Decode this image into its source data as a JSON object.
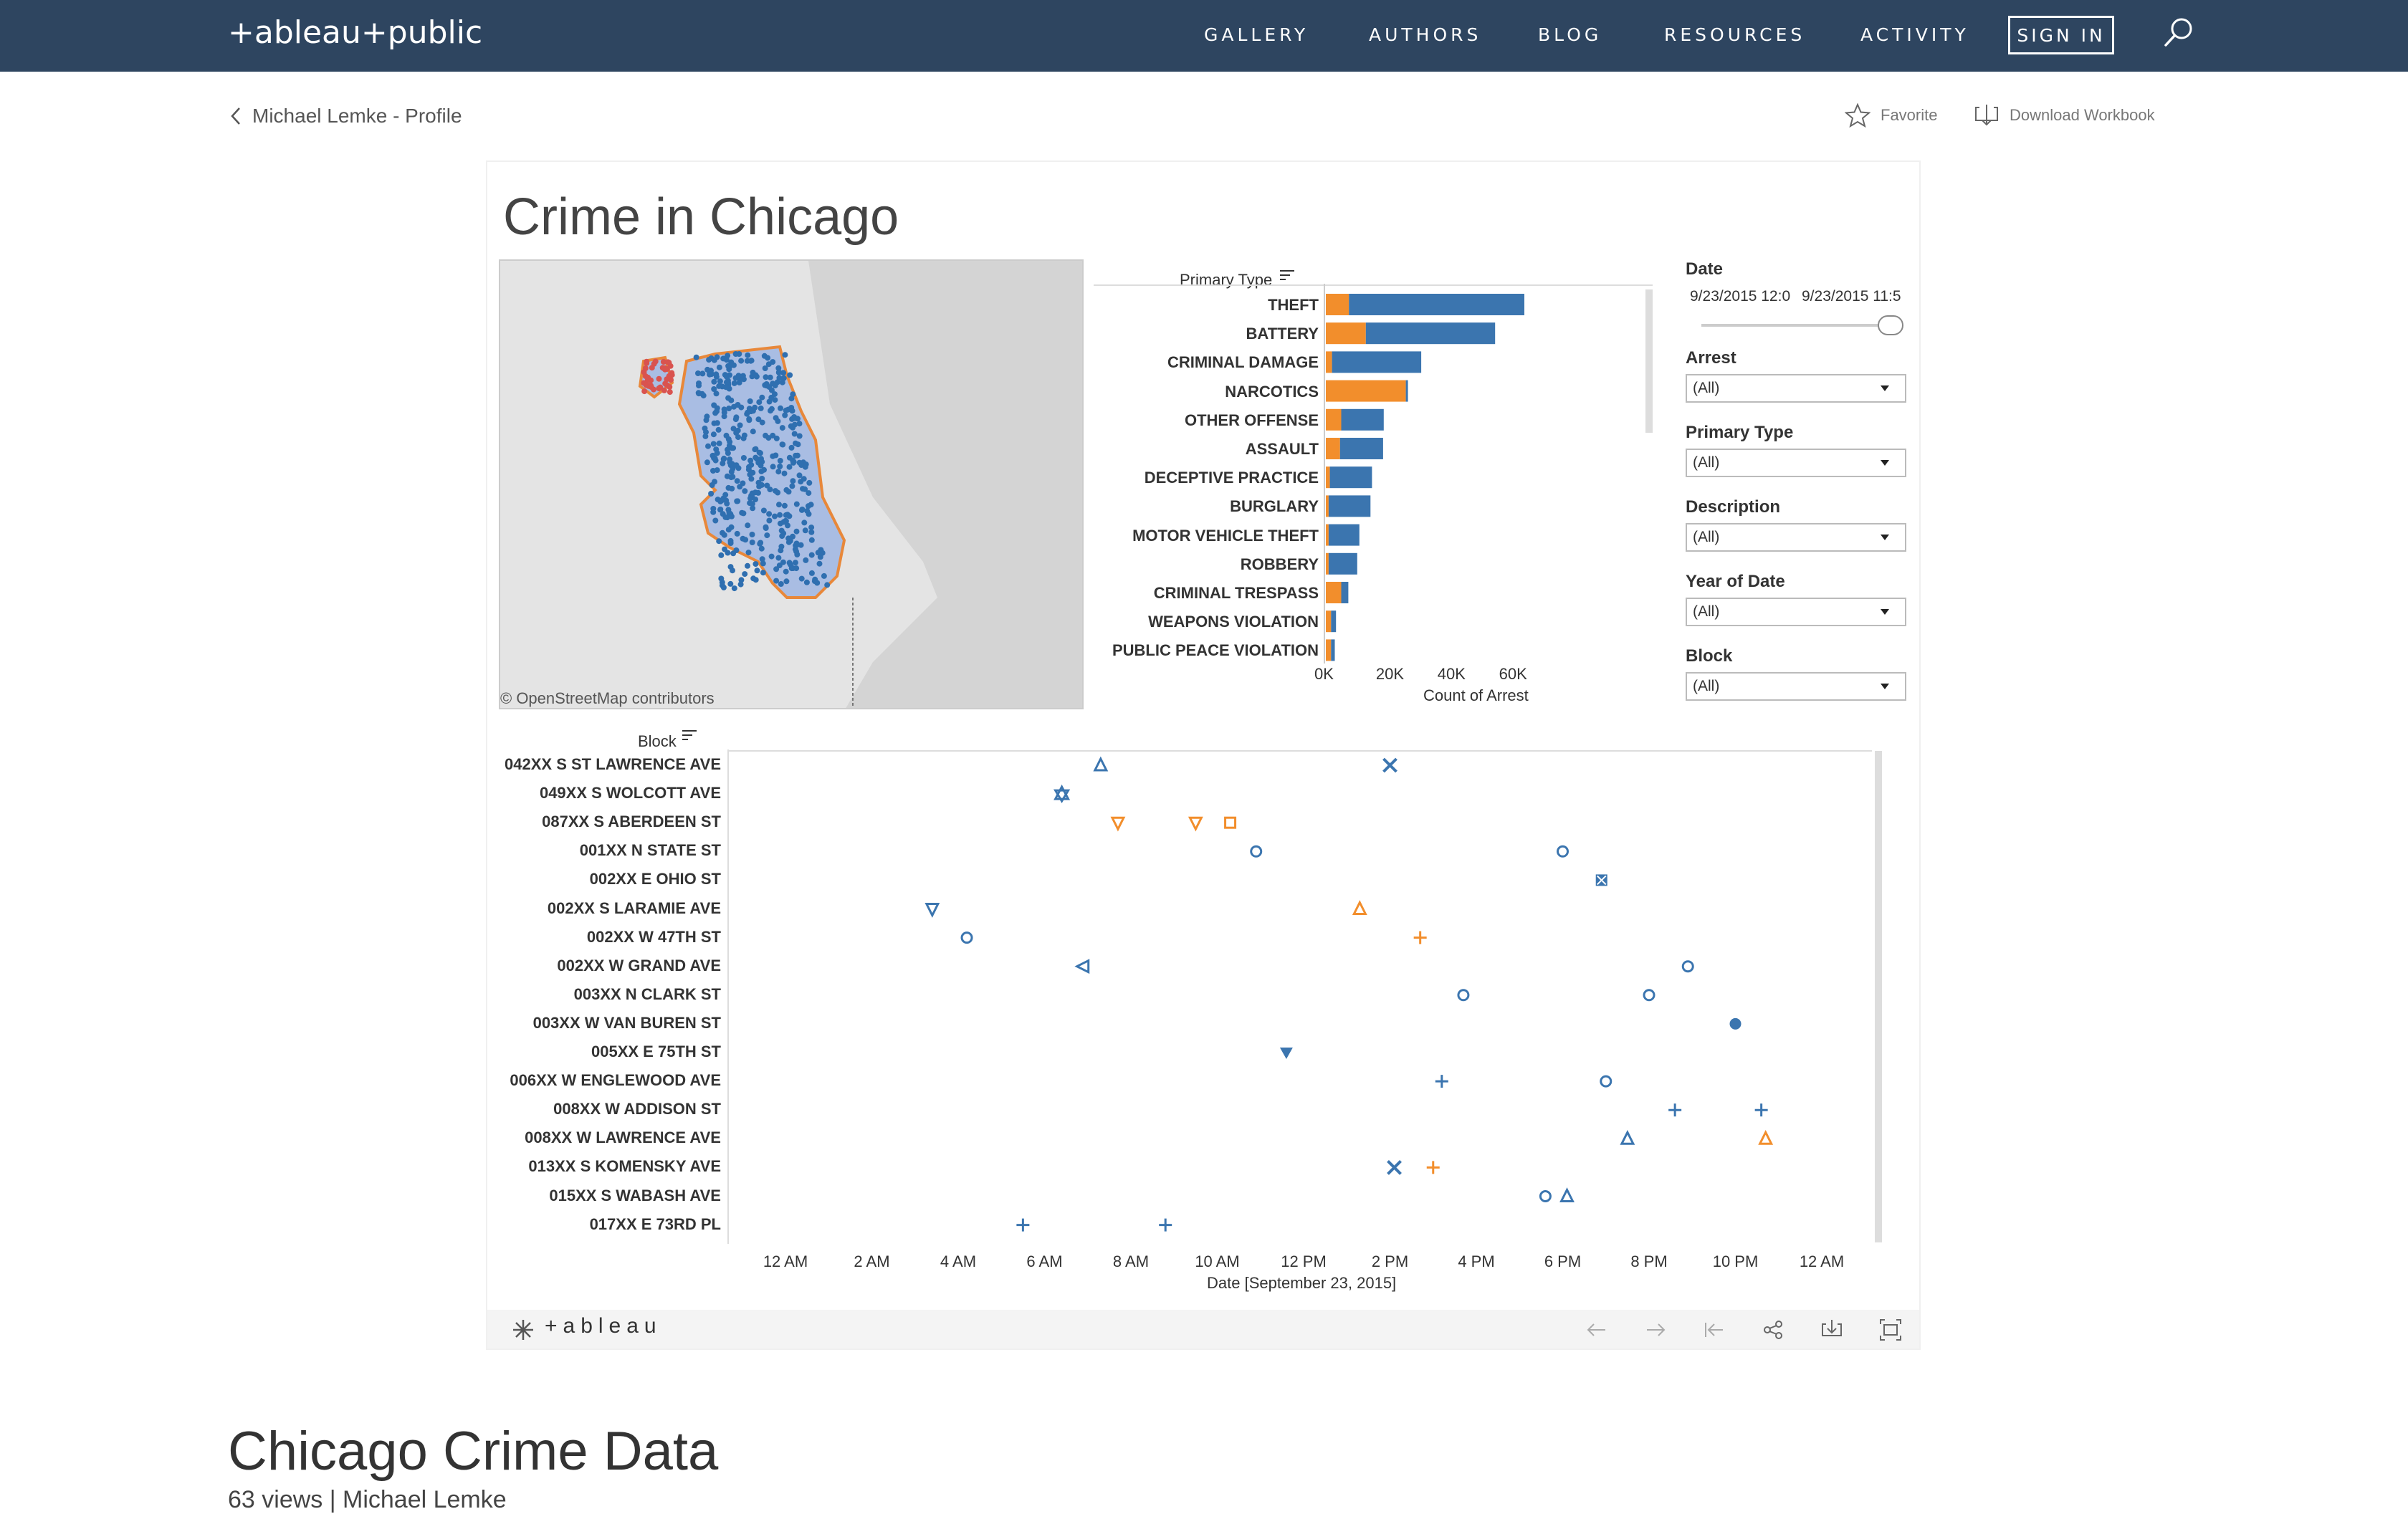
{
  "nav": {
    "logo": "+ableau+public",
    "links": [
      "GALLERY",
      "AUTHORS",
      "BLOG",
      "RESOURCES",
      "ACTIVITY"
    ],
    "signin": "SIGN IN"
  },
  "header": {
    "back_label": "Michael Lemke - Profile",
    "favorite_label": "Favorite",
    "download_label": "Download Workbook"
  },
  "viz": {
    "title": "Crime in Chicago",
    "map_attribution": "© OpenStreetMap contributors",
    "footer_brand": "+ableau"
  },
  "filters": {
    "date_label": "Date",
    "date_start": "9/23/2015 12:0",
    "date_end": "9/23/2015 11:5",
    "items": [
      {
        "label": "Arrest",
        "value": "(All)"
      },
      {
        "label": "Primary Type",
        "value": "(All)"
      },
      {
        "label": "Description",
        "value": "(All)"
      },
      {
        "label": "Year of Date",
        "value": "(All)"
      },
      {
        "label": "Block",
        "value": "(All)"
      }
    ]
  },
  "colors": {
    "arrest_true": "#f28e2c",
    "arrest_false": "#3b75af",
    "nav_bg": "#2e4560"
  },
  "chart_data": [
    {
      "type": "bar",
      "stacked": true,
      "orientation": "horizontal",
      "field_label": "Primary Type",
      "xlabel": "Count of Arrest",
      "xticks": [
        "0K",
        "20K",
        "40K",
        "60K"
      ],
      "xlim": [
        0,
        68000
      ],
      "categories": [
        "THEFT",
        "BATTERY",
        "CRIMINAL DAMAGE",
        "NARCOTICS",
        "OTHER OFFENSE",
        "ASSAULT",
        "DECEPTIVE PRACTICE",
        "BURGLARY",
        "MOTOR VEHICLE THEFT",
        "ROBBERY",
        "CRIMINAL TRESPASS",
        "WEAPONS VIOLATION",
        "PUBLIC PEACE VIOLATION"
      ],
      "series": [
        {
          "color": "#f28e2c",
          "values": [
            7500,
            13000,
            2000,
            26000,
            5000,
            4600,
            1300,
            900,
            900,
            900,
            5000,
            1700,
            1700
          ]
        },
        {
          "color": "#3b75af",
          "values": [
            57000,
            42000,
            29000,
            700,
            13800,
            14000,
            13700,
            13600,
            10000,
            9300,
            2300,
            1600,
            1200
          ]
        }
      ]
    },
    {
      "type": "scatter",
      "field_label": "Block",
      "xlabel": "Date [September 23, 2015]",
      "xticks": [
        "12 AM",
        "2 AM",
        "4 AM",
        "6 AM",
        "8 AM",
        "10 AM",
        "12 PM",
        "2 PM",
        "4 PM",
        "6 PM",
        "8 PM",
        "10 PM",
        "12 AM"
      ],
      "xlim": [
        0,
        24
      ],
      "categories": [
        "042XX S ST LAWRENCE AVE",
        "049XX S WOLCOTT AVE",
        "087XX S ABERDEEN ST",
        "001XX N STATE ST",
        "002XX E OHIO ST",
        "002XX S LARAMIE AVE",
        "002XX W 47TH ST",
        "002XX W GRAND AVE",
        "003XX N CLARK ST",
        "003XX W VAN BUREN ST",
        "005XX E 75TH ST",
        "006XX W ENGLEWOOD AVE",
        "008XX W ADDISON ST",
        "008XX W LAWRENCE AVE",
        "013XX S KOMENSKY AVE",
        "015XX S WABASH AVE",
        "017XX E 73RD PL"
      ],
      "points": [
        {
          "row": 0,
          "x": 7.3,
          "shape": "triangle-up",
          "color": "#3b75af"
        },
        {
          "row": 0,
          "x": 14.0,
          "shape": "x",
          "color": "#3b75af"
        },
        {
          "row": 1,
          "x": 6.4,
          "shape": "star",
          "color": "#3b75af"
        },
        {
          "row": 2,
          "x": 7.7,
          "shape": "triangle-down",
          "color": "#f28e2c"
        },
        {
          "row": 2,
          "x": 9.5,
          "shape": "triangle-down",
          "color": "#f28e2c"
        },
        {
          "row": 2,
          "x": 10.3,
          "shape": "square",
          "color": "#f28e2c"
        },
        {
          "row": 3,
          "x": 10.9,
          "shape": "circle",
          "color": "#3b75af"
        },
        {
          "row": 3,
          "x": 18.0,
          "shape": "circle",
          "color": "#3b75af"
        },
        {
          "row": 4,
          "x": 18.9,
          "shape": "square-x",
          "color": "#3b75af"
        },
        {
          "row": 5,
          "x": 3.4,
          "shape": "triangle-down",
          "color": "#3b75af"
        },
        {
          "row": 5,
          "x": 13.3,
          "shape": "triangle-up",
          "color": "#f28e2c"
        },
        {
          "row": 6,
          "x": 4.2,
          "shape": "circle",
          "color": "#3b75af"
        },
        {
          "row": 6,
          "x": 14.7,
          "shape": "plus",
          "color": "#f28e2c"
        },
        {
          "row": 7,
          "x": 6.9,
          "shape": "triangle-left",
          "color": "#3b75af"
        },
        {
          "row": 7,
          "x": 20.9,
          "shape": "circle",
          "color": "#3b75af"
        },
        {
          "row": 8,
          "x": 15.7,
          "shape": "circle",
          "color": "#3b75af"
        },
        {
          "row": 8,
          "x": 20.0,
          "shape": "circle",
          "color": "#3b75af"
        },
        {
          "row": 9,
          "x": 22.0,
          "shape": "circle-filled",
          "color": "#3b75af"
        },
        {
          "row": 10,
          "x": 11.6,
          "shape": "triangle-down-filled",
          "color": "#3b75af"
        },
        {
          "row": 11,
          "x": 15.2,
          "shape": "plus",
          "color": "#3b75af"
        },
        {
          "row": 11,
          "x": 19.0,
          "shape": "circle",
          "color": "#3b75af"
        },
        {
          "row": 12,
          "x": 20.6,
          "shape": "plus",
          "color": "#3b75af"
        },
        {
          "row": 12,
          "x": 22.6,
          "shape": "plus",
          "color": "#3b75af"
        },
        {
          "row": 13,
          "x": 19.5,
          "shape": "triangle-up",
          "color": "#3b75af"
        },
        {
          "row": 13,
          "x": 22.7,
          "shape": "triangle-up",
          "color": "#f28e2c"
        },
        {
          "row": 14,
          "x": 14.1,
          "shape": "x",
          "color": "#3b75af"
        },
        {
          "row": 14,
          "x": 15.0,
          "shape": "plus",
          "color": "#f28e2c"
        },
        {
          "row": 15,
          "x": 17.6,
          "shape": "circle",
          "color": "#3b75af"
        },
        {
          "row": 15,
          "x": 18.1,
          "shape": "triangle-up",
          "color": "#3b75af"
        },
        {
          "row": 16,
          "x": 5.5,
          "shape": "plus",
          "color": "#3b75af"
        },
        {
          "row": 16,
          "x": 8.8,
          "shape": "plus",
          "color": "#3b75af"
        }
      ]
    }
  ],
  "page": {
    "title": "Chicago Crime Data",
    "views_line": "63 views | Michael Lemke"
  }
}
